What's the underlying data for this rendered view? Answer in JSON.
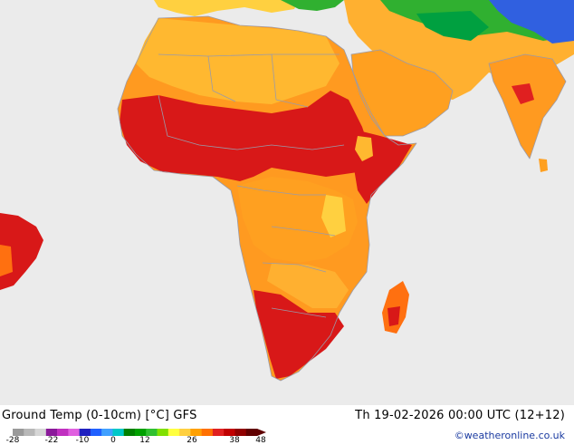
{
  "title": "Ground Temp (0-10cm) [°C] GFS",
  "datetime": "Th 19-02-2026 00:00 UTC (12+12)",
  "credit": "©weatheronline.co.uk",
  "legend": {
    "ticks": [
      "-28",
      "-22",
      "-10",
      "0",
      "12",
      "26",
      "38",
      "48"
    ],
    "colors": [
      "#9a9a9a",
      "#b8b8b8",
      "#d6d6d6",
      "#8a1a9a",
      "#c030c0",
      "#e060e0",
      "#2020c0",
      "#2060ff",
      "#40a0ff",
      "#00c8c8",
      "#008000",
      "#00a000",
      "#30c030",
      "#80e000",
      "#ffff40",
      "#ffd040",
      "#ffa000",
      "#ff7000",
      "#e02020",
      "#c00000",
      "#900000",
      "#600000"
    ]
  },
  "colors": {
    "ocean": "#ebebeb",
    "very_hot": "#d81818",
    "hot": "#ff6a10",
    "warm": "#ff9a20",
    "mild": "#ffb830",
    "cool": "#ffe040",
    "cold_green": "#30b030",
    "cold_blue": "#3060e0",
    "border": "#9a9aa8"
  }
}
